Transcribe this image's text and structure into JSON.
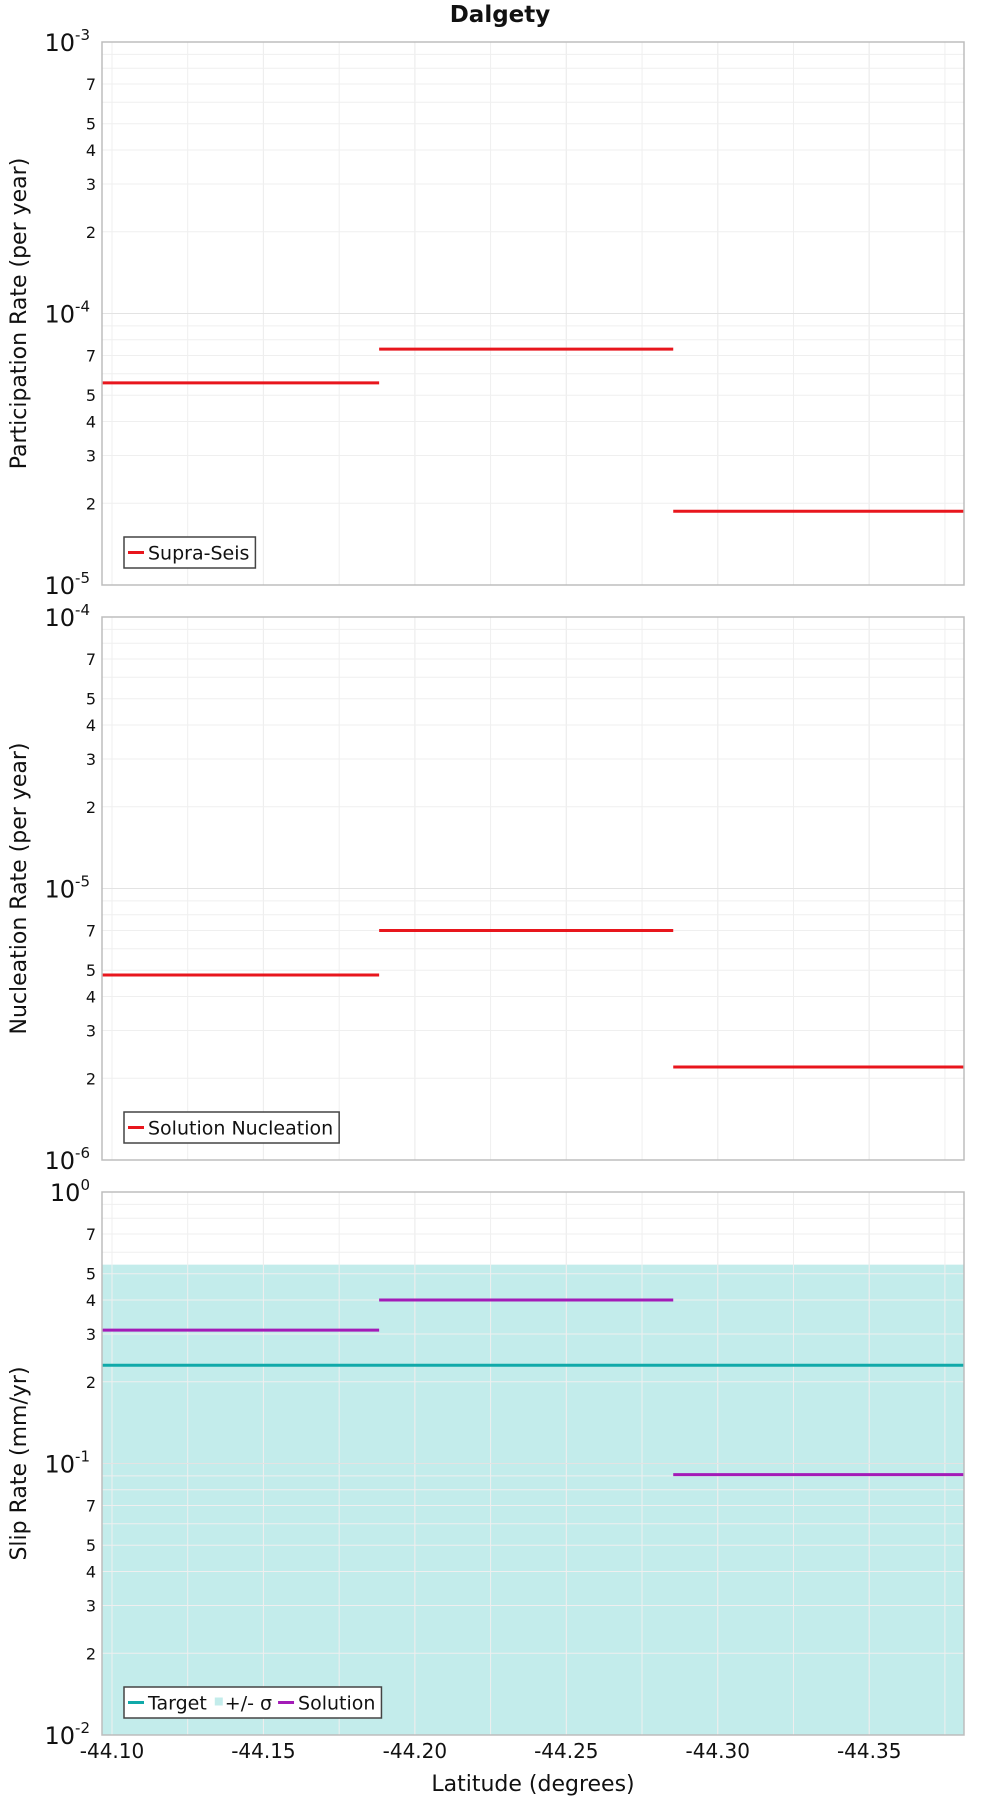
{
  "title": "Dalgety",
  "xlabel": "Latitude (degrees)",
  "x_ticks": [
    "-44.10",
    "-44.15",
    "-44.20",
    "-44.25",
    "-44.30",
    "-44.35"
  ],
  "x_tick_values": [
    -44.1,
    -44.15,
    -44.2,
    -44.25,
    -44.3,
    -44.35
  ],
  "colors": {
    "red": "#e8161d",
    "target": "#10a9a9",
    "band": "#c3eceb",
    "solution": "#a31bb7"
  },
  "chart_data": [
    {
      "type": "line",
      "title": "Dalgety",
      "ylabel": "Participation Rate (per year)",
      "yscale": "log",
      "ylim": [
        1e-05,
        0.001
      ],
      "xlim": [
        -44.0967,
        -44.3813
      ],
      "major_ticks": [
        {
          "base": "10",
          "exp": "-5"
        },
        {
          "base": "10",
          "exp": "-4"
        },
        {
          "base": "10",
          "exp": "-3"
        }
      ],
      "minor_ticks": [
        "2",
        "3",
        "4",
        "5",
        "7",
        "2",
        "3",
        "4",
        "5",
        "7"
      ],
      "series": [
        {
          "name": "Supra-Seis",
          "color": "#e8161d",
          "segments": [
            {
              "x0": -44.0967,
              "x1": -44.1882,
              "y": 5.55e-05
            },
            {
              "x0": -44.1882,
              "x1": -44.2853,
              "y": 7.39e-05
            },
            {
              "x0": -44.2853,
              "x1": -44.3813,
              "y": 1.87e-05
            }
          ]
        }
      ],
      "legend": [
        "Supra-Seis"
      ],
      "legend_position": "bottom-left"
    },
    {
      "type": "line",
      "ylabel": "Nucleation Rate (per year)",
      "yscale": "log",
      "ylim": [
        1e-06,
        0.0001
      ],
      "xlim": [
        -44.0967,
        -44.3813
      ],
      "major_ticks": [
        {
          "base": "10",
          "exp": "-6"
        },
        {
          "base": "10",
          "exp": "-5"
        },
        {
          "base": "10",
          "exp": "-4"
        }
      ],
      "minor_ticks": [
        "2",
        "3",
        "4",
        "5",
        "7",
        "2",
        "3",
        "4",
        "5",
        "7"
      ],
      "series": [
        {
          "name": "Solution Nucleation",
          "color": "#e8161d",
          "segments": [
            {
              "x0": -44.0967,
              "x1": -44.1882,
              "y": 4.8e-06
            },
            {
              "x0": -44.1882,
              "x1": -44.2853,
              "y": 7e-06
            },
            {
              "x0": -44.2853,
              "x1": -44.3813,
              "y": 2.2e-06
            }
          ]
        }
      ],
      "legend": [
        "Solution Nucleation"
      ],
      "legend_position": "bottom-left"
    },
    {
      "type": "line",
      "ylabel": "Slip Rate (mm/yr)",
      "yscale": "log",
      "ylim": [
        0.01,
        1
      ],
      "xlim": [
        -44.0967,
        -44.3813
      ],
      "major_ticks": [
        {
          "base": "10",
          "exp": "-2"
        },
        {
          "base": "10",
          "exp": "-1"
        },
        {
          "base": "10",
          "exp": "0"
        }
      ],
      "minor_ticks": [
        "2",
        "3",
        "4",
        "5",
        "7",
        "2",
        "3",
        "4",
        "5",
        "7"
      ],
      "band": {
        "name": "+/- σ",
        "y0": 0.01,
        "y1": 0.54,
        "color": "#c3eceb"
      },
      "series": [
        {
          "name": "Target",
          "color": "#10a9a9",
          "segments": [
            {
              "x0": -44.0967,
              "x1": -44.3813,
              "y": 0.23
            }
          ]
        },
        {
          "name": "Solution",
          "color": "#a31bb7",
          "segments": [
            {
              "x0": -44.0967,
              "x1": -44.1882,
              "y": 0.31
            },
            {
              "x0": -44.1882,
              "x1": -44.2853,
              "y": 0.4
            },
            {
              "x0": -44.2853,
              "x1": -44.3813,
              "y": 0.091
            }
          ]
        }
      ],
      "legend": [
        "Target",
        "+/- σ",
        "Solution"
      ],
      "legend_position": "bottom-left"
    }
  ]
}
